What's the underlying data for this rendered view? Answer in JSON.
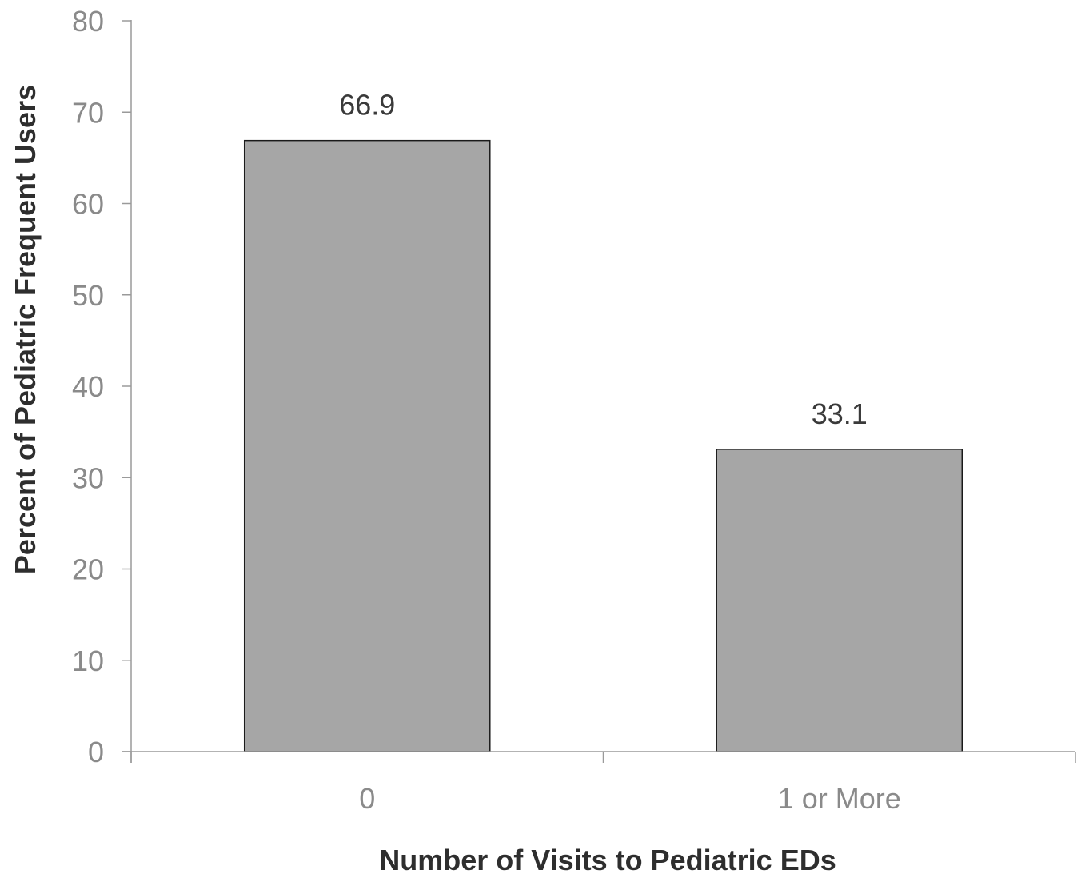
{
  "chart_data": {
    "type": "bar",
    "title": "",
    "xlabel": "Number of Visits to Pediatric EDs",
    "ylabel": "Percent of Pediatric Frequent Users",
    "categories": [
      "0",
      "1 or More"
    ],
    "values": [
      66.9,
      33.1
    ],
    "data_labels": [
      "66.9",
      "33.1"
    ],
    "ylim": [
      0,
      80
    ],
    "yticks": [
      0,
      10,
      20,
      30,
      40,
      50,
      60,
      70,
      80
    ],
    "grid": false,
    "legend": "none",
    "colors": {
      "bar_fill": "#a6a6a6",
      "bar_stroke": "#1a1a1a",
      "axis": "#9a9a9a"
    }
  }
}
